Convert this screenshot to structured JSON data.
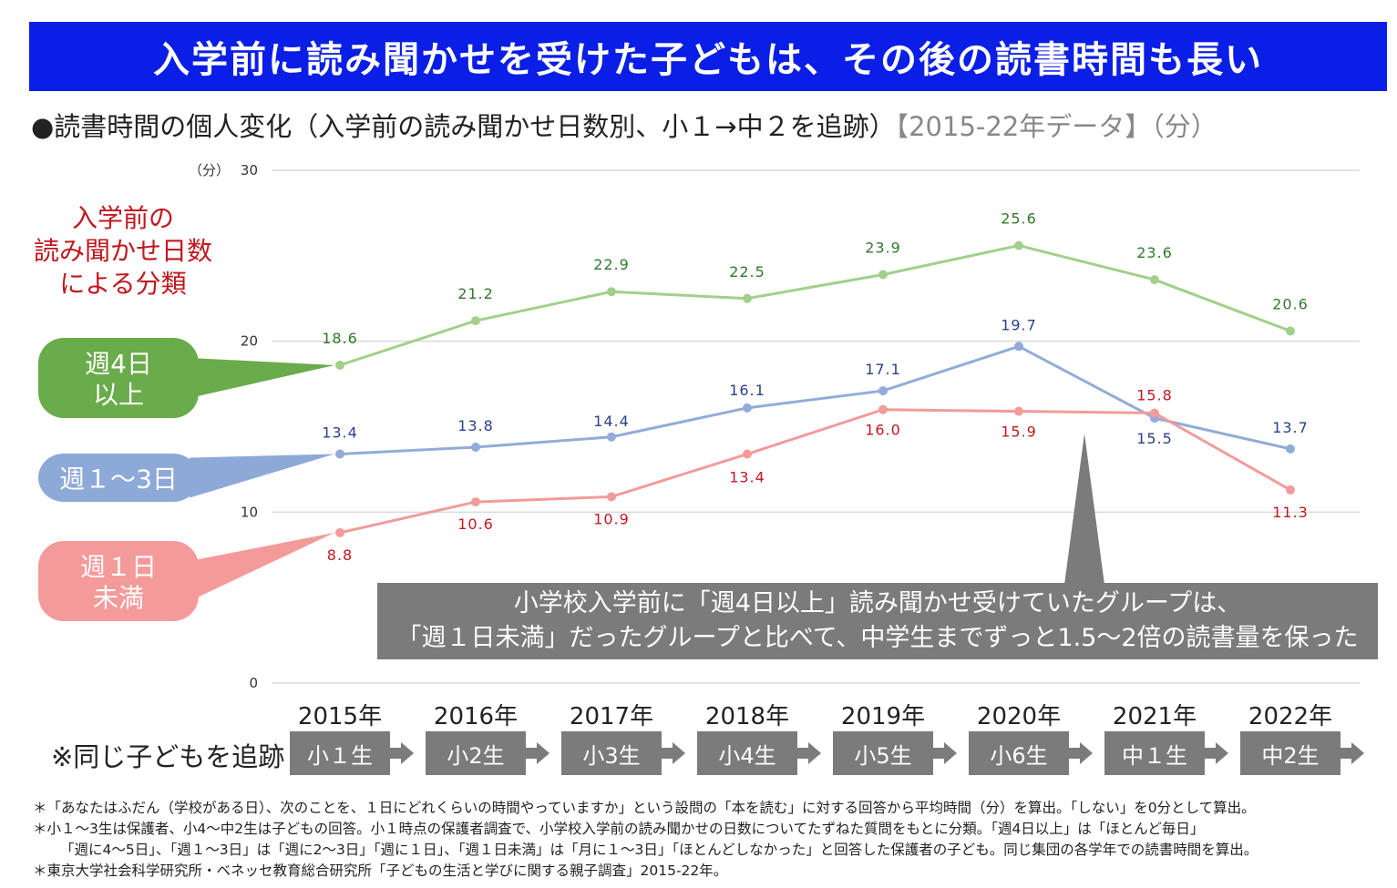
{
  "title": "入学前に読み聞かせを受けた子どもは、その後の読書時間も長い",
  "subtitle": {
    "main": "●読書時間の個人変化（入学前の読み聞かせ日数別、小１→中２を追跡）",
    "gray": "【2015-22年データ】（分）"
  },
  "legend_heading": [
    "入学前の",
    "読み聞かせ日数",
    "による分類"
  ],
  "note": [
    "小学校入学前に「週4日以上」読み聞かせ受けていたグループは、",
    "「週１日未満」だったグループと比べて、中学生までずっと1.5～2倍の読書量を保った"
  ],
  "track_label": "※同じ子どもを追跡",
  "grades": [
    "小１生",
    "小2生",
    "小3生",
    "小4生",
    "小5生",
    "小6生",
    "中１生",
    "中2生"
  ],
  "chart_data": {
    "type": "line",
    "title": "読書時間の個人変化（入学前の読み聞かせ日数別、小１→中２を追跡）",
    "ylabel": "（分）",
    "ylim": [
      0,
      30
    ],
    "yticks": [
      "0",
      "10",
      "20",
      "30"
    ],
    "categories": [
      "2015年",
      "2016年",
      "2017年",
      "2018年",
      "2019年",
      "2020年",
      "2021年",
      "2022年"
    ],
    "series": [
      {
        "name": "週4日以上",
        "legend": [
          "週4日",
          "以上"
        ],
        "color": "#a2d08a",
        "label_color": "#2f7a2a",
        "legend_color": "#6aab4b",
        "values": [
          18.6,
          21.2,
          22.9,
          22.5,
          23.9,
          25.6,
          23.6,
          20.6
        ],
        "labels": [
          "18.6",
          "21.2",
          "22.9",
          "22.5",
          "23.9",
          "25.6",
          "23.6",
          "20.6"
        ]
      },
      {
        "name": "週１～3日",
        "legend": [
          "週１～3日"
        ],
        "color": "#92acd8",
        "label_color": "#2b3f8c",
        "legend_color": "#8da9d8",
        "values": [
          13.4,
          13.8,
          14.4,
          16.1,
          17.1,
          19.7,
          15.5,
          13.7
        ],
        "labels": [
          "13.4",
          "13.8",
          "14.4",
          "16.1",
          "17.1",
          "19.7",
          "15.5",
          "13.7"
        ]
      },
      {
        "name": "週１日未満",
        "legend": [
          "週１日",
          "未満"
        ],
        "color": "#f29b9b",
        "label_color": "#c0181f",
        "legend_color": "#f49a9a",
        "values": [
          8.8,
          10.6,
          10.9,
          13.4,
          16.0,
          15.9,
          15.8,
          11.3
        ],
        "labels": [
          "8.8",
          "10.6",
          "10.9",
          "13.4",
          "16.0",
          "15.9",
          "15.8",
          "11.3"
        ]
      }
    ]
  },
  "footnotes": [
    "＊「あなたはふだん（学校がある日）、次のことを、１日にどれくらいの時間やっていますか」という設問の「本を読む」に対する回答から平均時間（分）を算出。「しない」を0分として算出。",
    "＊小１～3生は保護者、小4～中2生は子どもの回答。小１時点の保護者調査で、小学校入学前の読み聞かせの日数についてたずねた質問をもとに分類。「週4日以上」は「ほとんど毎日」",
    "「週に4～5日」、「週１～3日」は「週に2～3日」「週に１日」、「週１日未満」は「月に１～3日」「ほとんどしなかった」と回答した保護者の子ども。同じ集団の各学年での読書時間を算出。",
    "＊東京大学社会科学研究所・ベネッセ教育総合研究所「子どもの生活と学びに関する親子調査」2015-22年。"
  ]
}
